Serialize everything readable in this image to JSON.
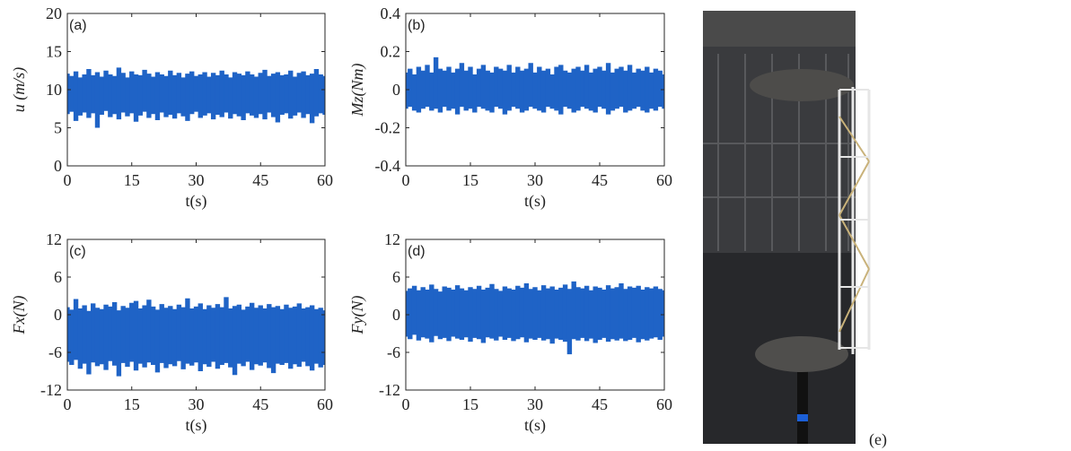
{
  "chart_data": [
    {
      "type": "area",
      "panel_label": "(a)",
      "xlabel": "t(s)",
      "ylabel": "u (m/s)",
      "color": "#1f63c6",
      "xlim": [
        0,
        60
      ],
      "xticks": [
        0,
        15,
        30,
        45,
        60
      ],
      "ylim": [
        0,
        20
      ],
      "yticks": [
        0,
        5,
        10,
        15,
        20
      ],
      "x": [
        0,
        1,
        2,
        3,
        4,
        5,
        6,
        7,
        8,
        9,
        10,
        11,
        12,
        13,
        14,
        15,
        16,
        17,
        18,
        19,
        20,
        21,
        22,
        23,
        24,
        25,
        26,
        27,
        28,
        29,
        30,
        31,
        32,
        33,
        34,
        35,
        36,
        37,
        38,
        39,
        40,
        41,
        42,
        43,
        44,
        45,
        46,
        47,
        48,
        49,
        50,
        51,
        52,
        53,
        54,
        55,
        56,
        57,
        58,
        59,
        60
      ],
      "upper": [
        12.1,
        11.8,
        12.4,
        11.6,
        12.0,
        12.7,
        11.9,
        12.3,
        11.7,
        12.5,
        12.0,
        11.8,
        12.9,
        12.2,
        11.6,
        12.4,
        12.0,
        11.9,
        12.6,
        12.1,
        11.7,
        12.3,
        12.0,
        11.8,
        12.5,
        11.9,
        12.2,
        11.6,
        12.1,
        12.4,
        11.8,
        12.0,
        12.3,
        11.7,
        12.2,
        11.9,
        12.5,
        12.0,
        11.6,
        12.3,
        12.1,
        11.9,
        12.4,
        12.0,
        11.7,
        12.2,
        12.6,
        11.8,
        12.1,
        12.3,
        11.9,
        12.0,
        12.5,
        11.7,
        12.2,
        12.4,
        11.9,
        12.1,
        12.7,
        12.0,
        11.8
      ],
      "lower": [
        6.8,
        7.1,
        5.9,
        6.6,
        7.0,
        6.3,
        6.9,
        5.0,
        6.7,
        7.2,
        6.4,
        6.8,
        6.1,
        7.0,
        6.5,
        6.9,
        5.8,
        6.6,
        7.1,
        6.3,
        6.8,
        6.0,
        7.0,
        6.4,
        6.7,
        6.2,
        6.9,
        6.5,
        5.9,
        6.8,
        7.1,
        6.3,
        6.6,
        6.9,
        6.1,
        6.7,
        6.4,
        7.0,
        6.2,
        6.8,
        6.5,
        6.0,
        6.9,
        6.6,
        6.3,
        6.8,
        6.1,
        7.0,
        6.4,
        5.7,
        6.7,
        6.9,
        6.2,
        6.6,
        7.0,
        6.3,
        6.8,
        5.6,
        6.5,
        6.9,
        6.7
      ]
    },
    {
      "type": "area",
      "panel_label": "(b)",
      "xlabel": "t(s)",
      "ylabel": "Mz(Nm)",
      "color": "#1f63c6",
      "xlim": [
        0,
        60
      ],
      "xticks": [
        0,
        15,
        30,
        45,
        60
      ],
      "ylim": [
        -0.4,
        0.4
      ],
      "yticks": [
        -0.4,
        -0.2,
        0,
        0.2,
        0.4
      ],
      "x": [
        0,
        1,
        2,
        3,
        4,
        5,
        6,
        7,
        8,
        9,
        10,
        11,
        12,
        13,
        14,
        15,
        16,
        17,
        18,
        19,
        20,
        21,
        22,
        23,
        24,
        25,
        26,
        27,
        28,
        29,
        30,
        31,
        32,
        33,
        34,
        35,
        36,
        37,
        38,
        39,
        40,
        41,
        42,
        43,
        44,
        45,
        46,
        47,
        48,
        49,
        50,
        51,
        52,
        53,
        54,
        55,
        56,
        57,
        58,
        59,
        60
      ],
      "upper": [
        0.09,
        0.11,
        0.08,
        0.12,
        0.1,
        0.13,
        0.09,
        0.17,
        0.11,
        0.1,
        0.12,
        0.09,
        0.11,
        0.14,
        0.1,
        0.12,
        0.08,
        0.11,
        0.13,
        0.1,
        0.09,
        0.12,
        0.11,
        0.1,
        0.13,
        0.09,
        0.12,
        0.1,
        0.11,
        0.14,
        0.09,
        0.12,
        0.1,
        0.11,
        0.08,
        0.12,
        0.13,
        0.1,
        0.09,
        0.11,
        0.12,
        0.1,
        0.13,
        0.09,
        0.11,
        0.12,
        0.1,
        0.14,
        0.09,
        0.11,
        0.12,
        0.1,
        0.13,
        0.09,
        0.11,
        0.1,
        0.12,
        0.09,
        0.11,
        0.1,
        0.08
      ],
      "lower": [
        -0.1,
        -0.09,
        -0.11,
        -0.12,
        -0.1,
        -0.09,
        -0.11,
        -0.1,
        -0.12,
        -0.09,
        -0.11,
        -0.1,
        -0.13,
        -0.09,
        -0.11,
        -0.1,
        -0.12,
        -0.09,
        -0.1,
        -0.11,
        -0.12,
        -0.09,
        -0.1,
        -0.13,
        -0.11,
        -0.09,
        -0.1,
        -0.12,
        -0.11,
        -0.09,
        -0.1,
        -0.11,
        -0.12,
        -0.09,
        -0.1,
        -0.11,
        -0.13,
        -0.09,
        -0.1,
        -0.12,
        -0.11,
        -0.09,
        -0.1,
        -0.11,
        -0.12,
        -0.09,
        -0.1,
        -0.13,
        -0.11,
        -0.1,
        -0.09,
        -0.12,
        -0.11,
        -0.1,
        -0.09,
        -0.11,
        -0.12,
        -0.1,
        -0.11,
        -0.09,
        -0.1
      ]
    },
    {
      "type": "area",
      "panel_label": "(c)",
      "xlabel": "t(s)",
      "ylabel": "Fx(N)",
      "color": "#1f63c6",
      "xlim": [
        0,
        60
      ],
      "xticks": [
        0,
        15,
        30,
        45,
        60
      ],
      "ylim": [
        -12,
        12
      ],
      "yticks": [
        -12,
        -6,
        0,
        6,
        12
      ],
      "x": [
        0,
        1,
        2,
        3,
        4,
        5,
        6,
        7,
        8,
        9,
        10,
        11,
        12,
        13,
        14,
        15,
        16,
        17,
        18,
        19,
        20,
        21,
        22,
        23,
        24,
        25,
        26,
        27,
        28,
        29,
        30,
        31,
        32,
        33,
        34,
        35,
        36,
        37,
        38,
        39,
        40,
        41,
        42,
        43,
        44,
        45,
        46,
        47,
        48,
        49,
        50,
        51,
        52,
        53,
        54,
        55,
        56,
        57,
        58,
        59,
        60
      ],
      "upper": [
        1.2,
        0.8,
        2.5,
        1.0,
        1.5,
        0.6,
        1.8,
        1.1,
        0.9,
        1.6,
        1.3,
        2.0,
        0.7,
        1.4,
        1.1,
        1.9,
        2.2,
        1.0,
        1.5,
        2.4,
        1.3,
        0.8,
        1.7,
        1.1,
        1.4,
        0.9,
        1.6,
        1.2,
        2.6,
        1.0,
        1.3,
        1.8,
        0.9,
        1.5,
        1.1,
        1.7,
        1.2,
        2.8,
        1.0,
        1.4,
        1.6,
        0.8,
        1.3,
        1.9,
        1.1,
        1.5,
        1.0,
        1.7,
        1.2,
        1.4,
        0.9,
        1.6,
        1.1,
        1.3,
        1.8,
        1.0,
        1.2,
        1.5,
        0.9,
        1.1,
        0.7
      ],
      "lower": [
        -7.5,
        -8.0,
        -7.2,
        -8.6,
        -7.8,
        -9.5,
        -7.6,
        -8.2,
        -7.9,
        -8.8,
        -7.4,
        -8.1,
        -9.8,
        -7.7,
        -8.3,
        -7.5,
        -8.9,
        -7.8,
        -8.4,
        -7.6,
        -8.0,
        -9.2,
        -7.7,
        -8.5,
        -7.9,
        -8.2,
        -7.4,
        -8.7,
        -7.8,
        -8.1,
        -7.6,
        -9.0,
        -7.9,
        -8.3,
        -7.5,
        -8.6,
        -8.0,
        -7.7,
        -8.4,
        -9.6,
        -7.8,
        -8.2,
        -7.5,
        -8.8,
        -7.9,
        -8.1,
        -7.6,
        -8.5,
        -9.3,
        -7.8,
        -8.0,
        -7.7,
        -8.6,
        -7.9,
        -8.3,
        -7.5,
        -8.2,
        -8.9,
        -7.8,
        -8.4,
        -8.0
      ]
    },
    {
      "type": "area",
      "panel_label": "(d)",
      "xlabel": "t(s)",
      "ylabel": "Fy(N)",
      "color": "#1f63c6",
      "xlim": [
        0,
        60
      ],
      "xticks": [
        0,
        15,
        30,
        45,
        60
      ],
      "ylim": [
        -12,
        12
      ],
      "yticks": [
        -12,
        -6,
        0,
        6,
        12
      ],
      "x": [
        0,
        1,
        2,
        3,
        4,
        5,
        6,
        7,
        8,
        9,
        10,
        11,
        12,
        13,
        14,
        15,
        16,
        17,
        18,
        19,
        20,
        21,
        22,
        23,
        24,
        25,
        26,
        27,
        28,
        29,
        30,
        31,
        32,
        33,
        34,
        35,
        36,
        37,
        38,
        39,
        40,
        41,
        42,
        43,
        44,
        45,
        46,
        47,
        48,
        49,
        50,
        51,
        52,
        53,
        54,
        55,
        56,
        57,
        58,
        59,
        60
      ],
      "upper": [
        3.8,
        4.2,
        4.6,
        3.9,
        4.4,
        4.0,
        4.8,
        4.1,
        3.7,
        4.5,
        4.3,
        4.0,
        4.7,
        4.2,
        3.9,
        4.4,
        4.1,
        4.6,
        4.0,
        4.3,
        4.9,
        4.1,
        3.8,
        4.5,
        4.2,
        4.0,
        4.6,
        4.3,
        5.0,
        4.1,
        4.4,
        3.9,
        4.7,
        4.2,
        4.5,
        4.0,
        4.3,
        4.8,
        4.1,
        5.3,
        4.4,
        4.2,
        4.6,
        3.9,
        4.5,
        4.3,
        4.0,
        4.7,
        4.2,
        4.4,
        5.0,
        4.1,
        4.5,
        4.3,
        4.6,
        4.0,
        4.4,
        4.2,
        4.5,
        4.1,
        3.9
      ],
      "lower": [
        -3.5,
        -3.9,
        -3.2,
        -4.1,
        -3.6,
        -3.8,
        -4.4,
        -3.4,
        -3.9,
        -3.7,
        -4.2,
        -3.5,
        -3.8,
        -4.0,
        -3.6,
        -4.3,
        -3.7,
        -3.9,
        -4.5,
        -3.6,
        -3.8,
        -4.1,
        -3.5,
        -4.0,
        -3.7,
        -4.2,
        -3.9,
        -3.6,
        -4.4,
        -3.8,
        -4.0,
        -3.7,
        -4.1,
        -3.9,
        -4.6,
        -3.8,
        -4.0,
        -4.3,
        -6.3,
        -3.9,
        -4.1,
        -3.7,
        -4.2,
        -3.8,
        -4.5,
        -4.0,
        -3.7,
        -4.3,
        -3.9,
        -4.1,
        -3.8,
        -4.2,
        -4.0,
        -3.7,
        -4.4,
        -3.9,
        -4.1,
        -3.8,
        -3.6,
        -4.0,
        -3.5
      ]
    }
  ],
  "photo_label": "(e)"
}
